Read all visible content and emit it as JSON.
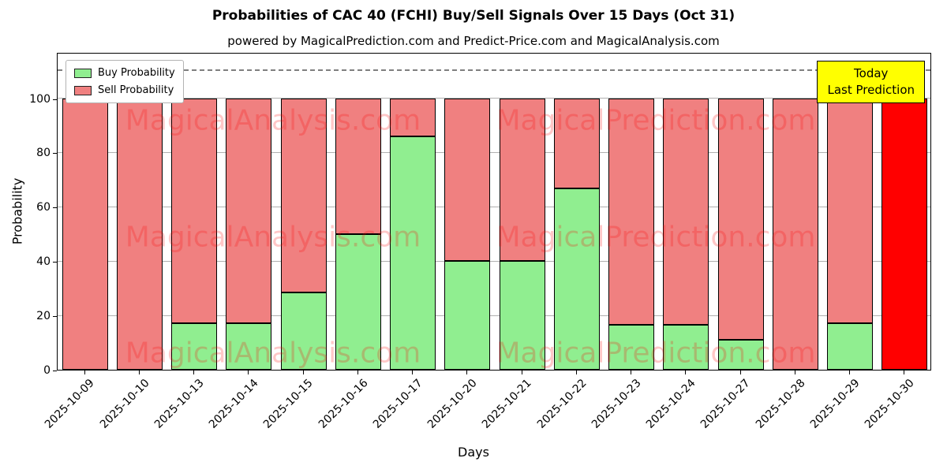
{
  "title": "Probabilities of CAC 40 (FCHI) Buy/Sell Signals Over 15 Days (Oct 31)",
  "subtitle": "powered by MagicalPrediction.com and Predict-Price.com and MagicalAnalysis.com",
  "legend": {
    "buy_label": "Buy Probability",
    "sell_label": "Sell Probability"
  },
  "annotation_box": {
    "line1": "Today",
    "line2": "Last Prediction",
    "bg_color": "#ffff00"
  },
  "watermarks": [
    "MagicalAnalysis.com",
    "MagicalPrediction.com"
  ],
  "chart_data": {
    "type": "bar",
    "stacked": true,
    "title": "Probabilities of CAC 40 (FCHI) Buy/Sell Signals Over 15 Days (Oct 31)",
    "xlabel": "Days",
    "ylabel": "Probability",
    "categories": [
      "2025-10-09",
      "2025-10-10",
      "2025-10-13",
      "2025-10-14",
      "2025-10-15",
      "2025-10-16",
      "2025-10-17",
      "2025-10-20",
      "2025-10-21",
      "2025-10-22",
      "2025-10-23",
      "2025-10-24",
      "2025-10-27",
      "2025-10-28",
      "2025-10-29",
      "2025-10-30"
    ],
    "series": [
      {
        "name": "Buy Probability",
        "color": "#90EE90",
        "values": [
          0,
          0,
          17,
          17,
          28.5,
          50,
          86,
          40,
          40,
          66.7,
          16.5,
          16.5,
          11,
          0,
          17,
          0
        ]
      },
      {
        "name": "Sell Probability",
        "color": "#F08080",
        "values": [
          100,
          100,
          83,
          83,
          71.5,
          50,
          14,
          60,
          60,
          33.3,
          83.5,
          83.5,
          89,
          100,
          83,
          100
        ]
      }
    ],
    "last_bar_color": "#FF0000",
    "yticks": [
      0,
      20,
      40,
      60,
      80,
      100
    ],
    "ylim": [
      0,
      117
    ],
    "dashed_line_y": 110,
    "grid": true,
    "legend_position": "upper left"
  }
}
